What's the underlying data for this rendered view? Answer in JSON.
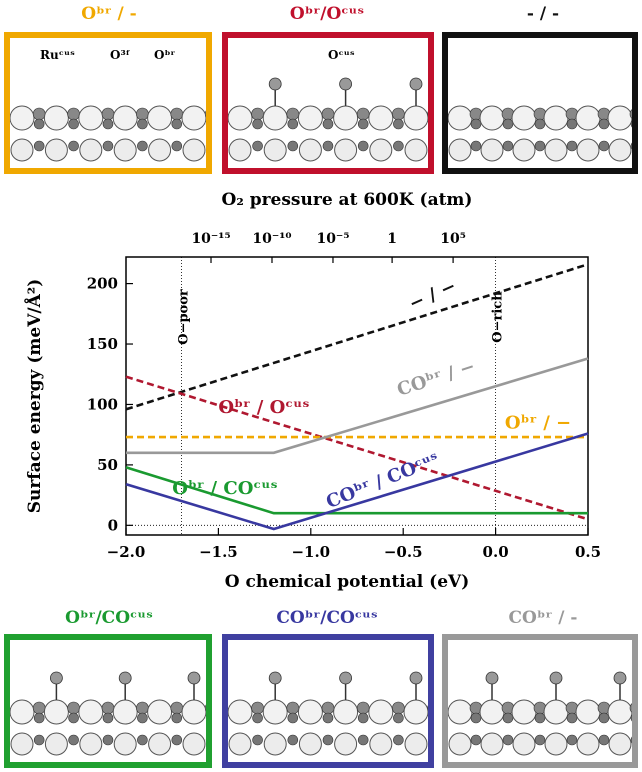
{
  "panels_top": [
    {
      "label": "Oᵇʳ / -",
      "color": "#f0a800",
      "adsorbate": "none"
    },
    {
      "label": "Oᵇʳ/Oᶜᵘˢ",
      "color": "#c0102c",
      "adsorbate": "O"
    },
    {
      "label": "- / -",
      "color": "#111111",
      "adsorbate": "none"
    }
  ],
  "panels_bottom": [
    {
      "label": "Oᵇʳ/COᶜᵘˢ",
      "color": "#20a030",
      "adsorbate": "CO"
    },
    {
      "label": "COᵇʳ/COᶜᵘˢ",
      "color": "#4040a0",
      "adsorbate": "CO"
    },
    {
      "label": "COᵇʳ / -",
      "color": "#999999",
      "adsorbate": "CO"
    }
  ],
  "annotations": {
    "ru_cus": "Ruᶜᵘˢ",
    "o3f": "O³ᶠ",
    "obr": "Oᵇʳ",
    "ocus": "Oᶜᵘˢ"
  },
  "chart_data": {
    "type": "line",
    "title": "O₂ pressure at 600K (atm)",
    "xlabel": "O chemical potential  (eV)",
    "ylabel": "Surface energy  (meV/Å²)",
    "xlim": [
      -2.0,
      0.5
    ],
    "ylim": [
      -8,
      222
    ],
    "xticks": [
      -2.0,
      -1.5,
      -1.0,
      -0.5,
      0.0,
      0.5
    ],
    "xtick_labels": [
      "−2.0",
      "−1.5",
      "−1.0",
      "−0.5",
      "0.0",
      "0.5"
    ],
    "yticks": [
      0,
      50,
      100,
      150,
      200
    ],
    "ytick_labels": [
      "0",
      "50",
      "100",
      "150",
      "200"
    ],
    "top_axis": {
      "ticks": [
        {
          "x": -1.54,
          "label": "10⁻¹⁵"
        },
        {
          "x": -1.21,
          "label": "10⁻¹⁰"
        },
        {
          "x": -0.88,
          "label": "10⁻⁵"
        },
        {
          "x": -0.56,
          "label": "1"
        },
        {
          "x": -0.23,
          "label": "10⁵"
        }
      ]
    },
    "vlines": [
      {
        "x": -1.7,
        "label": "O−poor"
      },
      {
        "x": 0.0,
        "label": "O−rich"
      }
    ],
    "series": [
      {
        "name": "− / −",
        "color": "#111111",
        "dash": true,
        "points": [
          [
            -2.0,
            96
          ],
          [
            0.5,
            216
          ]
        ]
      },
      {
        "name": "Oᵇʳ / Oᶜᵘˢ",
        "color": "#b01830",
        "dash": true,
        "points": [
          [
            -2.0,
            123
          ],
          [
            0.5,
            5
          ]
        ]
      },
      {
        "name": "Oᵇʳ / −",
        "color": "#f0a800",
        "dash": true,
        "points": [
          [
            -2.0,
            73
          ],
          [
            0.5,
            73
          ]
        ]
      },
      {
        "name": "COᵇʳ / −",
        "color": "#999999",
        "dash": false,
        "points": [
          [
            -2.0,
            60
          ],
          [
            -1.2,
            60
          ],
          [
            0.5,
            138
          ]
        ]
      },
      {
        "name": "Oᵇʳ / COᶜᵘˢ",
        "color": "#1a9a30",
        "dash": false,
        "points": [
          [
            -2.0,
            48
          ],
          [
            -1.2,
            10
          ],
          [
            0.5,
            10
          ]
        ]
      },
      {
        "name": "COᵇʳ / COᶜᵘˢ",
        "color": "#3838a0",
        "dash": false,
        "points": [
          [
            -2.0,
            34
          ],
          [
            -1.2,
            -3
          ],
          [
            0.5,
            76
          ]
        ]
      }
    ],
    "series_labels": [
      {
        "text": "− / −",
        "x": -0.45,
        "y": 178,
        "color": "#111111",
        "rot": -24
      },
      {
        "text": "Oᵇʳ / Oᶜᵘˢ",
        "x": -1.5,
        "y": 93,
        "color": "#b01830",
        "rot": 0
      },
      {
        "text": "COᵇʳ / −",
        "x": -0.52,
        "y": 107,
        "color": "#999999",
        "rot": -18
      },
      {
        "text": "Oᵇʳ / −",
        "x": 0.05,
        "y": 80,
        "color": "#f0a800",
        "rot": 0
      },
      {
        "text": "Oᵇʳ / COᶜᵘˢ",
        "x": -1.75,
        "y": 26,
        "color": "#1a9a30",
        "rot": 0
      },
      {
        "text": "COᵇʳ / COᶜᵘˢ",
        "x": -0.9,
        "y": 14,
        "color": "#3838a0",
        "rot": -22
      }
    ]
  }
}
